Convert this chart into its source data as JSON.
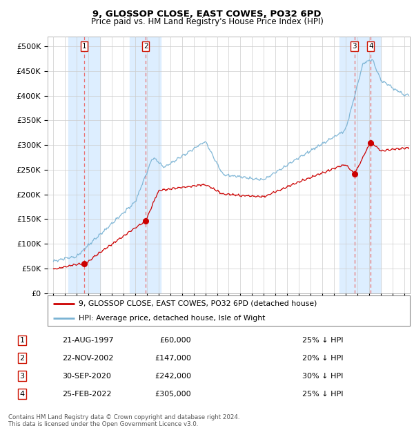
{
  "title1": "9, GLOSSOP CLOSE, EAST COWES, PO32 6PD",
  "title2": "Price paid vs. HM Land Registry's House Price Index (HPI)",
  "footer": "Contains HM Land Registry data © Crown copyright and database right 2024.\nThis data is licensed under the Open Government Licence v3.0.",
  "legend_line1": "9, GLOSSOP CLOSE, EAST COWES, PO32 6PD (detached house)",
  "legend_line2": "HPI: Average price, detached house, Isle of Wight",
  "transactions": [
    {
      "num": 1,
      "date_label": "21-AUG-1997",
      "price_label": "£60,000",
      "pct_label": "25% ↓ HPI",
      "year": 1997.64,
      "price": 60000
    },
    {
      "num": 2,
      "date_label": "22-NOV-2002",
      "price_label": "£147,000",
      "pct_label": "20% ↓ HPI",
      "year": 2002.89,
      "price": 147000
    },
    {
      "num": 3,
      "date_label": "30-SEP-2020",
      "price_label": "£242,000",
      "pct_label": "30% ↓ HPI",
      "year": 2020.75,
      "price": 242000
    },
    {
      "num": 4,
      "date_label": "25-FEB-2022",
      "price_label": "£305,000",
      "pct_label": "25% ↓ HPI",
      "year": 2022.15,
      "price": 305000
    }
  ],
  "hpi_color": "#7ab3d4",
  "price_color": "#cc0000",
  "vline_color": "#e87070",
  "highlight_bg": "#ddeeff",
  "grid_color": "#cccccc",
  "ylim": [
    0,
    520000
  ],
  "yticks": [
    0,
    50000,
    100000,
    150000,
    200000,
    250000,
    300000,
    350000,
    400000,
    450000,
    500000
  ],
  "xlim_start": 1994.5,
  "xlim_end": 2025.5,
  "shade_ranges": [
    [
      1996.3,
      1999.0
    ],
    [
      2001.5,
      2004.2
    ],
    [
      2019.5,
      2023.0
    ]
  ]
}
